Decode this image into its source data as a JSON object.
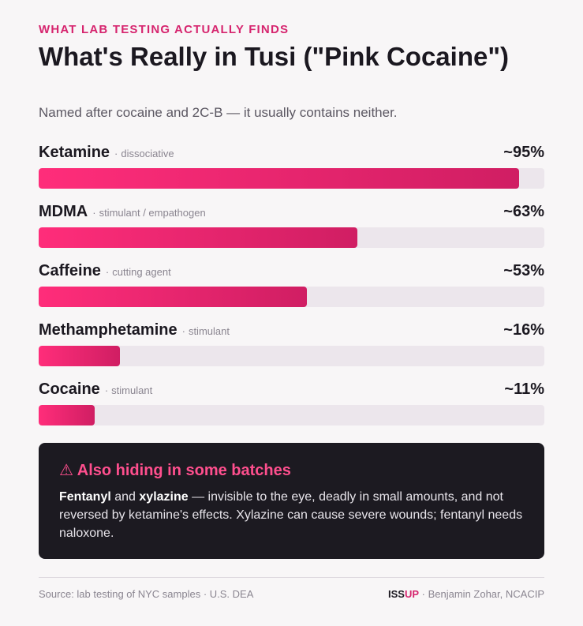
{
  "header": {
    "kicker": "WHAT LAB TESTING ACTUALLY FINDS",
    "title": "What's Really in Tusi (\"Pink Cocaine\")",
    "subtitle": "Named after cocaine and 2C-B — it usually contains neither."
  },
  "chart_data": {
    "type": "bar",
    "orientation": "horizontal",
    "title": "What's Really in Tusi (\"Pink Cocaine\")",
    "categories": [
      "Ketamine",
      "MDMA",
      "Caffeine",
      "Methamphetamine",
      "Cocaine"
    ],
    "descriptors": [
      "dissociative",
      "stimulant / empathogen",
      "cutting agent",
      "stimulant",
      "stimulant"
    ],
    "values": [
      95,
      63,
      53,
      16,
      11
    ],
    "value_labels": [
      "~95%",
      "~63%",
      "~53%",
      "~16%",
      "~11%"
    ],
    "xlim": [
      0,
      100
    ],
    "grid": false,
    "legend": "none",
    "colors": {
      "bar_start": "#ff2d7a",
      "bar_end": "#d01e63",
      "track": "#ece6ec"
    }
  },
  "callout": {
    "title": "⚠ Also hiding in some batches",
    "drug1": "Fentanyl",
    "and": " and ",
    "drug2": "xylazine",
    "text": " — invisible to the eye, deadly in small amounts, and not reversed by ketamine's effects. Xylazine can cause severe wounds; fentanyl needs naloxone."
  },
  "footer": {
    "source": "Source: lab testing of NYC samples · U.S. DEA",
    "brand_a": "ISS",
    "brand_b": "UP",
    "credit": " · Benjamin Zohar, NCACIP"
  }
}
